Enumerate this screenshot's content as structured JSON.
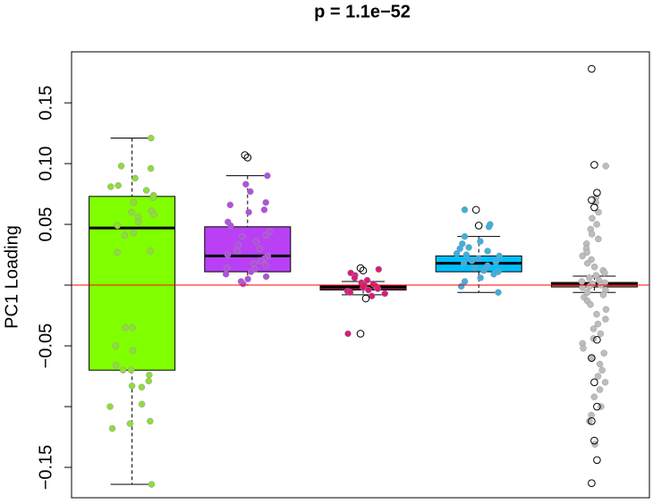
{
  "chart_data": {
    "type": "box",
    "title": "p = 1.1e−52",
    "y_label": "PC1 Loading",
    "ylim": [
      -0.175,
      0.192
    ],
    "yticks": [
      {
        "value": -0.15,
        "label": "−0.15"
      },
      {
        "value": -0.1,
        "label": null
      },
      {
        "value": -0.05,
        "label": "−0.05"
      },
      {
        "value": 0,
        "label": null
      },
      {
        "value": 0.05,
        "label": "0.05"
      },
      {
        "value": 0.1,
        "label": "0.10"
      },
      {
        "value": 0.15,
        "label": "0.15"
      }
    ],
    "reference_line": {
      "value": 0,
      "color": "#ff0000"
    },
    "groups": [
      {
        "color": "#80ff00",
        "point_color": "#8fdc3c",
        "whisker_low": -0.164,
        "q1": -0.07,
        "median": 0.047,
        "q3": 0.073,
        "whisker_high": 0.121,
        "outliers": [],
        "points": [
          0.121,
          0.098,
          0.096,
          0.088,
          0.082,
          0.081,
          0.078,
          0.074,
          0.072,
          0.068,
          0.061,
          0.06,
          0.058,
          0.056,
          0.052,
          0.049,
          0.043,
          0.041,
          0.028,
          0.027,
          -0.035,
          -0.035,
          -0.05,
          -0.054,
          -0.066,
          -0.07,
          -0.07,
          -0.074,
          -0.079,
          -0.083,
          -0.084,
          -0.098,
          -0.1,
          -0.112,
          -0.114,
          -0.118,
          -0.164
        ]
      },
      {
        "color": "#b940f5",
        "point_color": "#b34fe0",
        "whisker_low": 0.0,
        "q1": 0.011,
        "median": 0.024,
        "q3": 0.048,
        "whisker_high": 0.09,
        "outliers": [
          0.107,
          0.105
        ],
        "points": [
          0.09,
          0.083,
          0.077,
          0.068,
          0.066,
          0.062,
          0.06,
          0.052,
          0.049,
          0.044,
          0.041,
          0.04,
          0.036,
          0.033,
          0.03,
          0.028,
          0.025,
          0.024,
          0.022,
          0.02,
          0.018,
          0.016,
          0.014,
          0.013,
          0.011,
          0.009,
          0.007,
          0.005,
          0.003,
          0.001
        ]
      },
      {
        "color": "#8b1a4a",
        "point_color": "#d81b7a",
        "whisker_low": -0.008,
        "q1": -0.004,
        "median": -0.0015,
        "q3": 0.0,
        "whisker_high": 0.003,
        "outliers": [
          0.014,
          0.012,
          -0.011,
          -0.04
        ],
        "points": [
          0.013,
          0.01,
          0.008,
          0.006,
          0.004,
          0.002,
          0.001,
          0,
          -0.001,
          -0.002,
          -0.003,
          -0.004,
          -0.005,
          -0.006,
          -0.007,
          -0.009,
          -0.04
        ]
      },
      {
        "color": "#00bfff",
        "point_color": "#3bb0e0",
        "whisker_low": -0.006,
        "q1": 0.011,
        "median": 0.018,
        "q3": 0.024,
        "whisker_high": 0.04,
        "outliers": [
          0.062,
          0.049
        ],
        "points": [
          0.062,
          0.05,
          0.048,
          0.04,
          0.036,
          0.034,
          0.031,
          0.03,
          0.028,
          0.026,
          0.025,
          0.024,
          0.022,
          0.02,
          0.019,
          0.018,
          0.016,
          0.014,
          0.012,
          0.011,
          0.009,
          0.006,
          0.003,
          -0.001,
          -0.006
        ]
      },
      {
        "color": "#b8705a",
        "point_color": "#bdbdbd",
        "whisker_low": -0.006,
        "q1": -0.0015,
        "median": 0.0007,
        "q3": 0.0022,
        "whisker_high": 0.0074,
        "outliers": [
          0.178,
          0.099,
          0.076,
          0.07,
          0.064,
          -0.045,
          -0.06,
          -0.08,
          -0.1,
          -0.112,
          -0.128,
          -0.144,
          -0.163
        ],
        "points": [
          0.098,
          0.072,
          0.068,
          0.06,
          0.055,
          0.05,
          0.046,
          0.042,
          0.038,
          0.034,
          0.03,
          0.027,
          0.024,
          0.021,
          0.018,
          0.015,
          0.012,
          0.01,
          0.008,
          0.006,
          0.004,
          0.003,
          0.002,
          0.001,
          0,
          -0.001,
          -0.002,
          -0.004,
          -0.006,
          -0.008,
          -0.01,
          -0.013,
          -0.016,
          -0.02,
          -0.024,
          -0.028,
          -0.032,
          -0.036,
          -0.04,
          -0.044,
          -0.048,
          -0.052,
          -0.056,
          -0.06,
          -0.065,
          -0.07,
          -0.075,
          -0.08,
          -0.086,
          -0.092,
          -0.1,
          -0.107,
          -0.112,
          -0.131
        ]
      }
    ]
  }
}
